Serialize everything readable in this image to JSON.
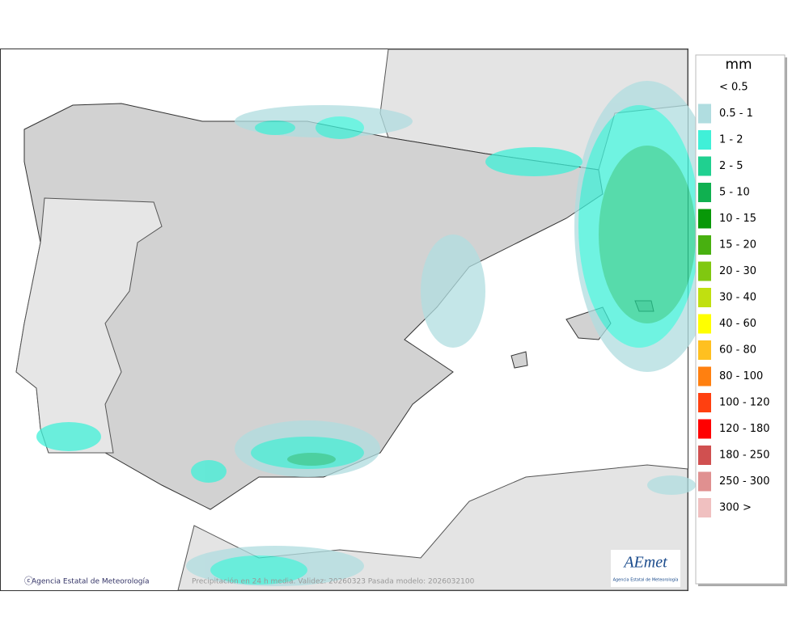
{
  "legend": {
    "title": "mm",
    "items": [
      {
        "label": "< 0.5",
        "color": "#ffffff"
      },
      {
        "label": "0.5 - 1",
        "color": "#b0dde0"
      },
      {
        "label": "1 - 2",
        "color": "#40f0d8"
      },
      {
        "label": "2 - 5",
        "color": "#20d090"
      },
      {
        "label": "5 - 10",
        "color": "#10b050"
      },
      {
        "label": "10 - 15",
        "color": "#089808"
      },
      {
        "label": "15 - 20",
        "color": "#48b010"
      },
      {
        "label": "20 - 30",
        "color": "#80c810"
      },
      {
        "label": "30 - 40",
        "color": "#c0e010"
      },
      {
        "label": "40 - 60",
        "color": "#ffff00"
      },
      {
        "label": "60 - 80",
        "color": "#ffc020"
      },
      {
        "label": "80 - 100",
        "color": "#ff8010"
      },
      {
        "label": "100 - 120",
        "color": "#ff4010"
      },
      {
        "label": "120 - 180",
        "color": "#ff0000"
      },
      {
        "label": "180 - 250",
        "color": "#d05050"
      },
      {
        "label": "250 - 300",
        "color": "#e09090"
      },
      {
        "label": "300 >",
        "color": "#f0c0c0"
      }
    ]
  },
  "footer": {
    "agency": "Agencia Estatal de Meteorología",
    "caption": "Precipitación en 24 h media. Validez: 20260323 Pasada modelo: 2026032100"
  },
  "logo": {
    "name": "AEmet",
    "subtitle": "Agencia Estatal de Meteorología"
  }
}
